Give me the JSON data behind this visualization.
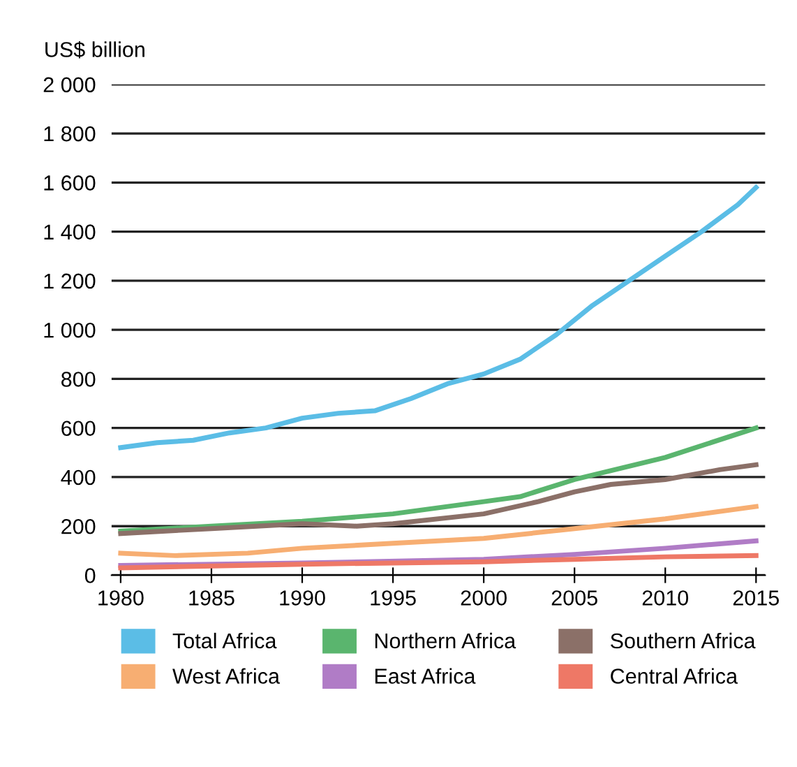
{
  "chart_data": {
    "type": "line",
    "ylabel": "US$ billion",
    "xlim": [
      1979.5,
      2015.5
    ],
    "xticks": [
      1980,
      1985,
      1990,
      1995,
      2000,
      2005,
      2010,
      2015
    ],
    "ylim": [
      0,
      2000
    ],
    "yticks": [
      0,
      {
        "value": 200,
        "label": "200"
      },
      400,
      600,
      800,
      {
        "value": 1000,
        "label": "1 000"
      },
      {
        "value": 1200,
        "label": "1 200"
      },
      {
        "value": 1400,
        "label": "1 400"
      },
      {
        "value": 1600,
        "label": "1 600"
      },
      {
        "value": 1800,
        "label": "1 800"
      },
      {
        "value": 2000,
        "label": "2 000"
      }
    ],
    "grid": "y",
    "legend": "bottom",
    "marker": "none",
    "line_style": "solid",
    "series": [
      {
        "name": "Total Africa",
        "color": "#5bbde6",
        "x": [
          1980,
          1982,
          1984,
          1986,
          1988,
          1990,
          1992,
          1994,
          1996,
          1998,
          2000,
          2002,
          2004,
          2006,
          2008,
          2010,
          2012,
          2014,
          2015
        ],
        "values": [
          520,
          540,
          550,
          580,
          600,
          640,
          660,
          670,
          720,
          780,
          820,
          880,
          980,
          1100,
          1200,
          1300,
          1400,
          1510,
          1580
        ]
      },
      {
        "name": "Northern Africa",
        "color": "#5ab56e",
        "x": [
          1980,
          1985,
          1990,
          1995,
          2000,
          2002,
          2005,
          2010,
          2015
        ],
        "values": [
          180,
          200,
          220,
          250,
          300,
          320,
          390,
          480,
          600
        ]
      },
      {
        "name": "Southern Africa",
        "color": "#8b7068",
        "x": [
          1980,
          1985,
          1990,
          1993,
          1995,
          2000,
          2003,
          2005,
          2007,
          2010,
          2013,
          2015
        ],
        "values": [
          170,
          190,
          210,
          200,
          210,
          250,
          300,
          340,
          370,
          390,
          430,
          450
        ]
      },
      {
        "name": "West Africa",
        "color": "#f7ae72",
        "x": [
          1980,
          1983,
          1987,
          1990,
          1995,
          2000,
          2005,
          2010,
          2015
        ],
        "values": [
          90,
          80,
          90,
          110,
          130,
          150,
          190,
          230,
          280
        ]
      },
      {
        "name": "East Africa",
        "color": "#b07cc6",
        "x": [
          1980,
          1990,
          2000,
          2005,
          2010,
          2015
        ],
        "values": [
          40,
          50,
          65,
          85,
          110,
          140
        ]
      },
      {
        "name": "Central Africa",
        "color": "#ee7866",
        "x": [
          1980,
          1990,
          2000,
          2005,
          2010,
          2015
        ],
        "values": [
          30,
          45,
          55,
          65,
          75,
          80
        ]
      }
    ]
  }
}
